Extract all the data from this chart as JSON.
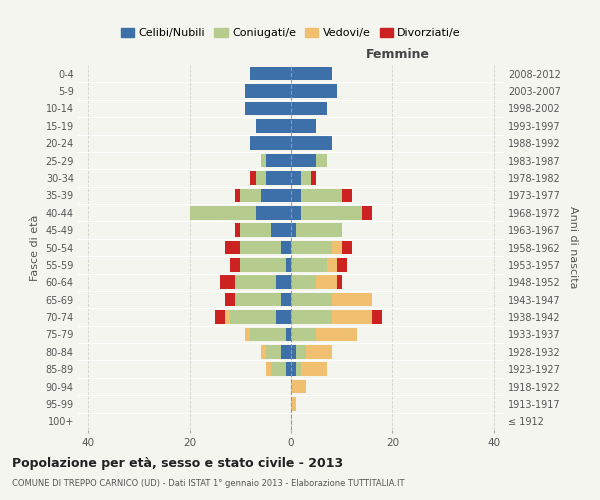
{
  "age_groups": [
    "100+",
    "95-99",
    "90-94",
    "85-89",
    "80-84",
    "75-79",
    "70-74",
    "65-69",
    "60-64",
    "55-59",
    "50-54",
    "45-49",
    "40-44",
    "35-39",
    "30-34",
    "25-29",
    "20-24",
    "15-19",
    "10-14",
    "5-9",
    "0-4"
  ],
  "birth_years": [
    "≤ 1912",
    "1913-1917",
    "1918-1922",
    "1923-1927",
    "1928-1932",
    "1933-1937",
    "1938-1942",
    "1943-1947",
    "1948-1952",
    "1953-1957",
    "1958-1962",
    "1963-1967",
    "1968-1972",
    "1973-1977",
    "1978-1982",
    "1983-1987",
    "1988-1992",
    "1993-1997",
    "1998-2002",
    "2003-2007",
    "2008-2012"
  ],
  "maschi": {
    "celibi": [
      0,
      0,
      0,
      1,
      2,
      1,
      3,
      2,
      3,
      1,
      2,
      4,
      7,
      6,
      5,
      5,
      8,
      7,
      9,
      9,
      8
    ],
    "coniugati": [
      0,
      0,
      0,
      3,
      3,
      7,
      9,
      9,
      8,
      9,
      8,
      6,
      13,
      4,
      2,
      1,
      0,
      0,
      0,
      0,
      0
    ],
    "vedovi": [
      0,
      0,
      0,
      1,
      1,
      1,
      1,
      0,
      0,
      0,
      0,
      0,
      0,
      0,
      0,
      0,
      0,
      0,
      0,
      0,
      0
    ],
    "divorziati": [
      0,
      0,
      0,
      0,
      0,
      0,
      2,
      2,
      3,
      2,
      3,
      1,
      0,
      1,
      1,
      0,
      0,
      0,
      0,
      0,
      0
    ]
  },
  "femmine": {
    "nubili": [
      0,
      0,
      0,
      1,
      1,
      0,
      0,
      0,
      0,
      0,
      0,
      1,
      2,
      2,
      2,
      5,
      8,
      5,
      7,
      9,
      8
    ],
    "coniugate": [
      0,
      0,
      0,
      1,
      2,
      5,
      8,
      8,
      5,
      7,
      8,
      9,
      12,
      8,
      2,
      2,
      0,
      0,
      0,
      0,
      0
    ],
    "vedove": [
      0,
      1,
      3,
      5,
      5,
      8,
      8,
      8,
      4,
      2,
      2,
      0,
      0,
      0,
      0,
      0,
      0,
      0,
      0,
      0,
      0
    ],
    "divorziate": [
      0,
      0,
      0,
      0,
      0,
      0,
      2,
      0,
      1,
      2,
      2,
      0,
      2,
      2,
      1,
      0,
      0,
      0,
      0,
      0,
      0
    ]
  },
  "colors": {
    "celibi": "#3d6fa8",
    "coniugati": "#b5cc8e",
    "vedovi": "#f0c070",
    "divorziati": "#cc2222"
  },
  "title": "Popolazione per età, sesso e stato civile - 2013",
  "subtitle": "COMUNE DI TREPPO CARNICO (UD) - Dati ISTAT 1° gennaio 2013 - Elaborazione TUTTITALIA.IT",
  "ylabel": "Fasce di età",
  "ylabel_right": "Anni di nascita",
  "xlim": 42,
  "bg_color": "#f5f5f0"
}
